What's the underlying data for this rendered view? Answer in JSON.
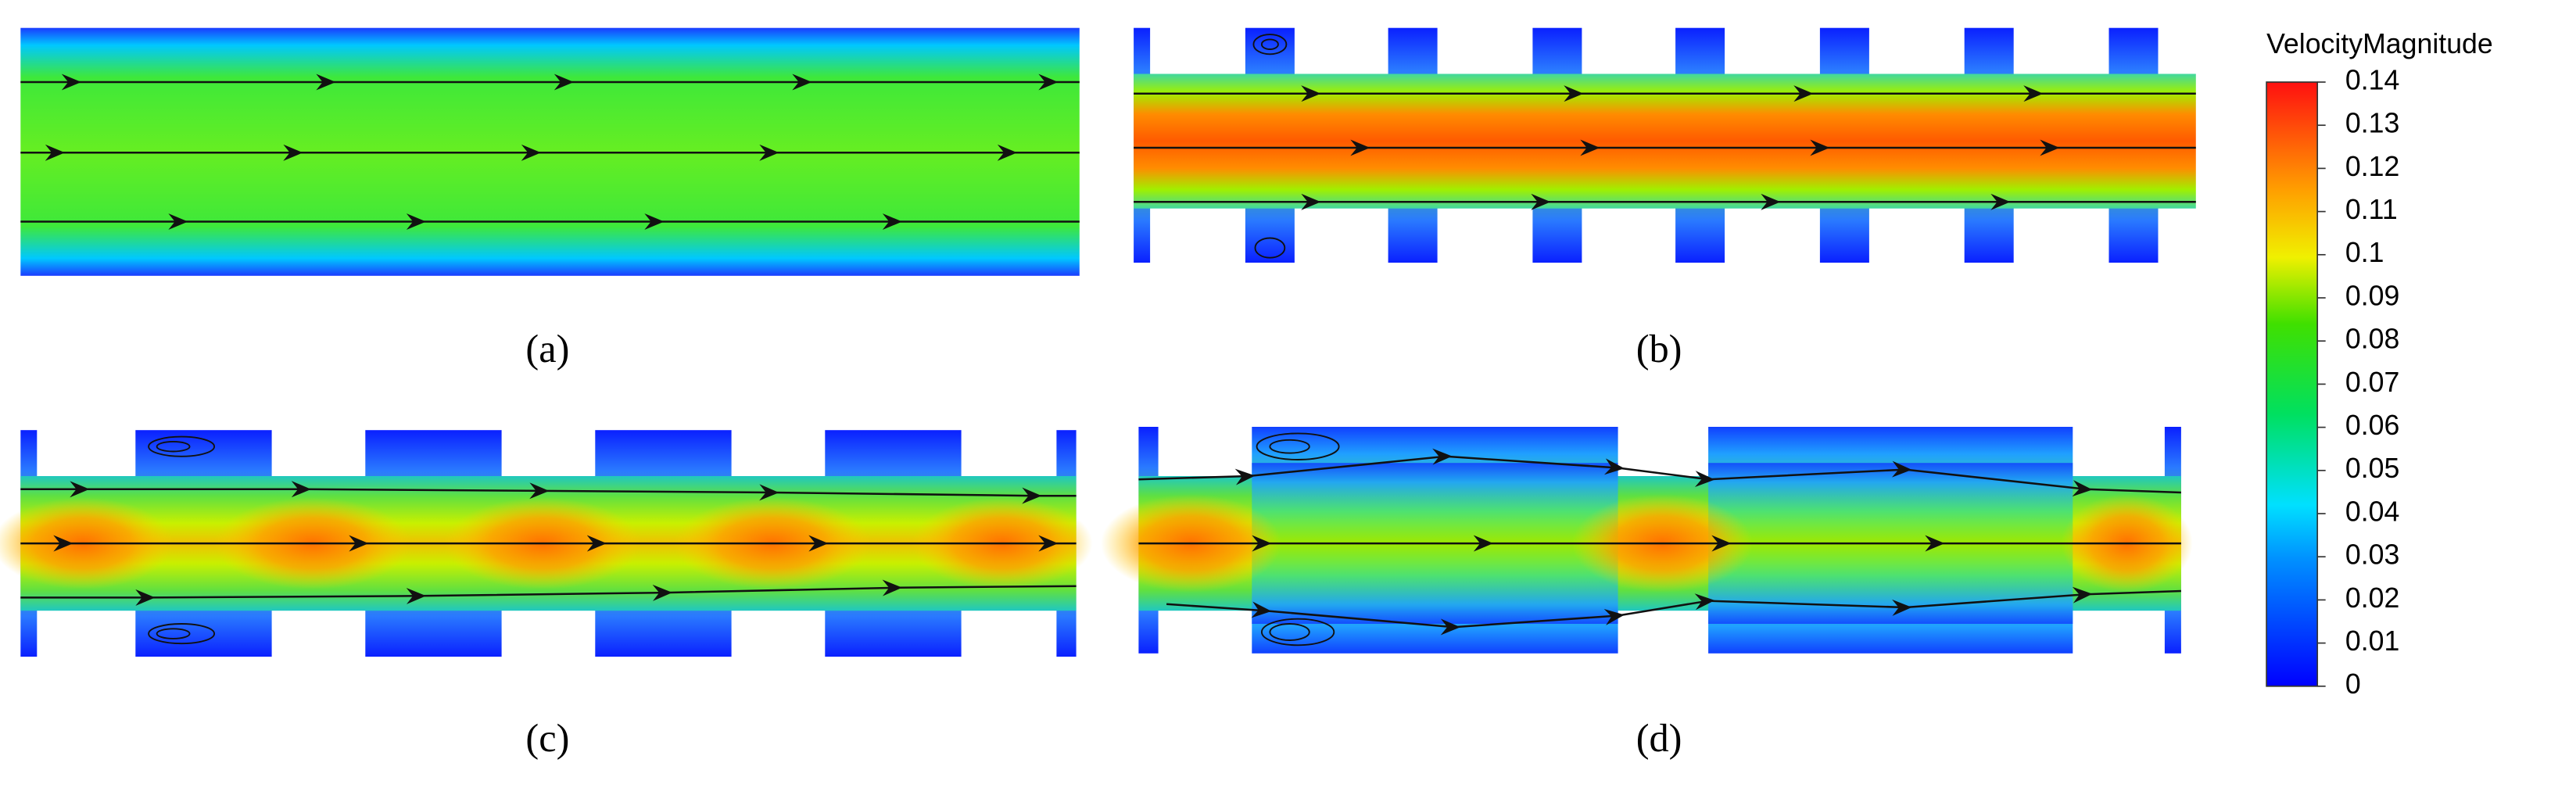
{
  "panels": [
    {
      "label": "(a)"
    },
    {
      "label": "(b)"
    },
    {
      "label": "(c)"
    },
    {
      "label": "(d)"
    }
  ],
  "colorbar": {
    "title": "VelocityMagnitude",
    "ticks": [
      0,
      0.01,
      0.02,
      0.03,
      0.04,
      0.05,
      0.06,
      0.07,
      0.08,
      0.09,
      0.1,
      0.11,
      0.12,
      0.13,
      0.14
    ]
  }
}
